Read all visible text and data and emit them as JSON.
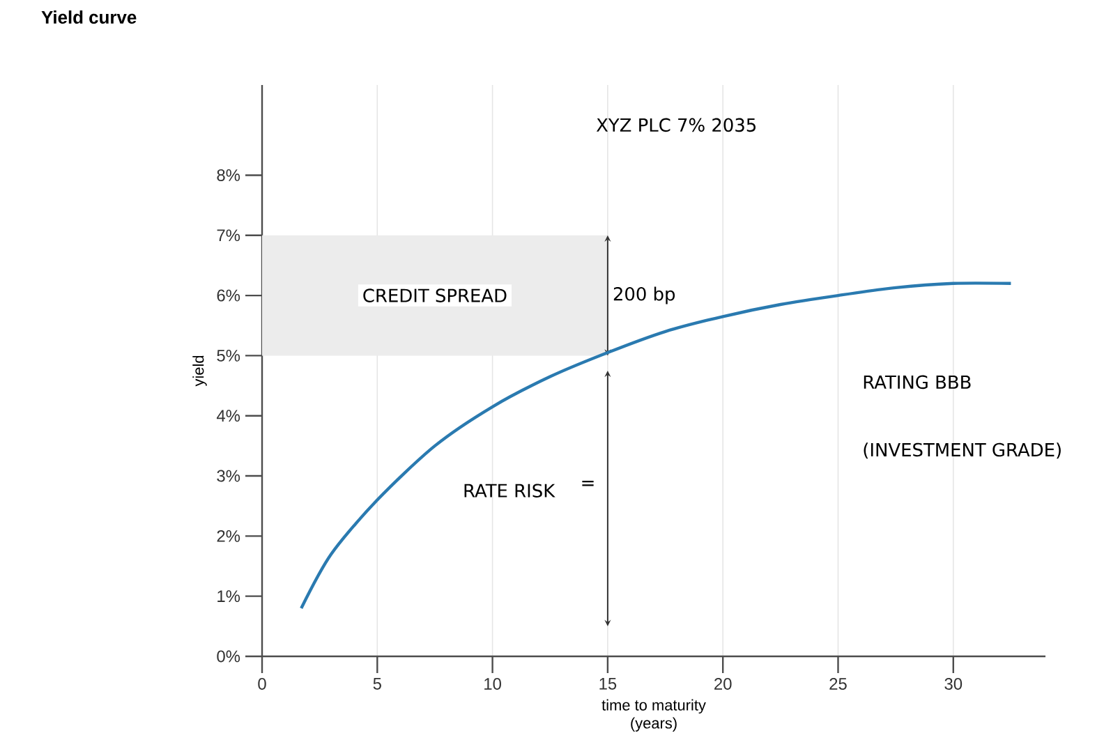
{
  "chart_data": {
    "type": "line",
    "title": "Yield curve",
    "xlabel": "time to maturity\n(years)",
    "ylabel": "yield",
    "x": [
      1.7,
      3,
      5,
      7.5,
      10,
      12.5,
      15,
      17.5,
      20,
      22.5,
      25,
      27.5,
      30,
      32.5
    ],
    "series": [
      {
        "color": "#2a7ab0",
        "values": [
          0.8,
          1.7,
          2.6,
          3.5,
          4.15,
          4.65,
          5.05,
          5.4,
          5.65,
          5.85,
          6.0,
          6.13,
          6.2,
          6.2
        ]
      }
    ],
    "xlim": [
      0,
      34
    ],
    "ylim": [
      0,
      9.5
    ],
    "xticks": [
      0,
      5,
      10,
      15,
      20,
      25,
      30
    ],
    "yticks": [
      {
        "value": 0,
        "label": "0%"
      },
      {
        "value": 1,
        "label": "1%"
      },
      {
        "value": 2,
        "label": "2%"
      },
      {
        "value": 3,
        "label": "3%"
      },
      {
        "value": 4,
        "label": "4%"
      },
      {
        "value": 5,
        "label": "5%"
      },
      {
        "value": 6,
        "label": "6%"
      },
      {
        "value": 7,
        "label": "7%"
      },
      {
        "value": 8,
        "label": "8%"
      }
    ],
    "grid": "x",
    "bands": [
      {
        "axis": "y",
        "from": 5,
        "to": 7,
        "label": "CREDIT SPREAD",
        "color": "#ececec"
      }
    ],
    "annotations": [
      "XYZ PLC 7% 2035",
      {
        "text": "200 bp",
        "x": 15,
        "y": 6
      },
      "RATING BBB",
      "(INVESTMENT GRADE)",
      "RATE RISK",
      "="
    ]
  }
}
